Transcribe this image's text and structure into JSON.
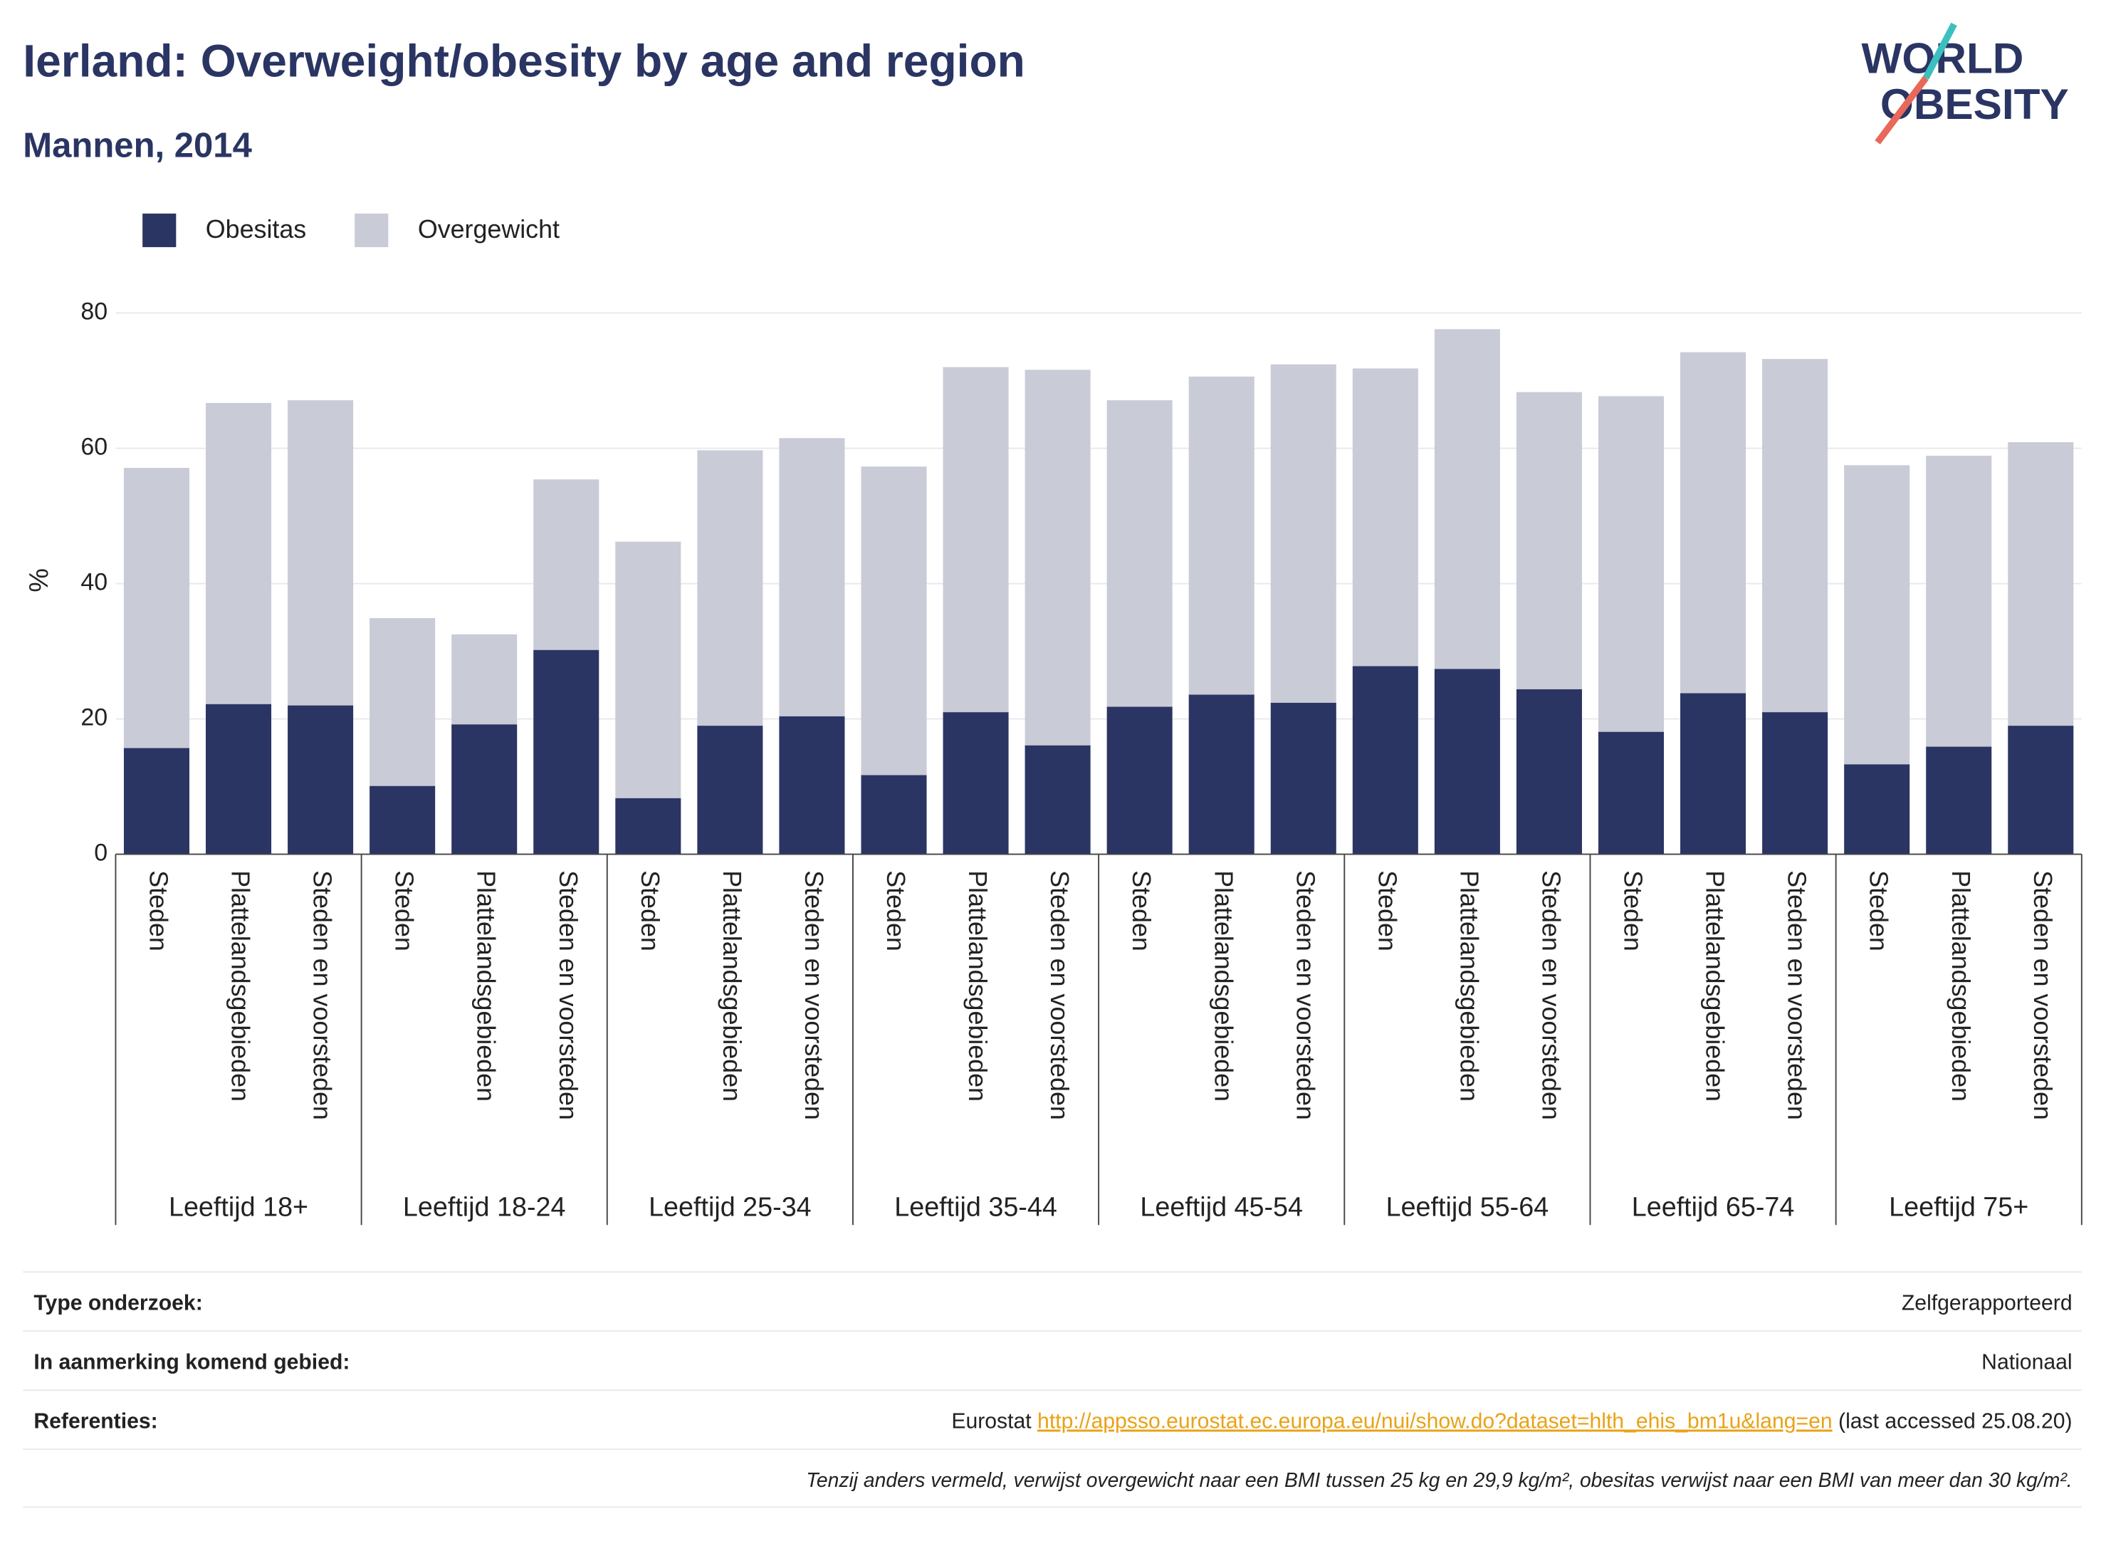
{
  "chart_data": {
    "type": "stacked_bar",
    "title": "Ierland: Overweight/obesity by age and region",
    "subtitle": "Mannen, 2014",
    "y_label": "%",
    "ylim": [
      0,
      80
    ],
    "yticks": [
      0,
      20,
      40,
      60,
      80
    ],
    "grid": true,
    "legend": "top-left",
    "groups": [
      {
        "name": "Leeftijd 18+",
        "categories": [
          "Steden",
          "Plattelandsgebieden",
          "Steden en voorsteden"
        ]
      },
      {
        "name": "Leeftijd 18-24",
        "categories": [
          "Steden",
          "Plattelandsgebieden",
          "Steden en voorsteden"
        ]
      },
      {
        "name": "Leeftijd 25-34",
        "categories": [
          "Steden",
          "Plattelandsgebieden",
          "Steden en voorsteden"
        ]
      },
      {
        "name": "Leeftijd 35-44",
        "categories": [
          "Steden",
          "Plattelandsgebieden",
          "Steden en voorsteden"
        ]
      },
      {
        "name": "Leeftijd 45-54",
        "categories": [
          "Steden",
          "Plattelandsgebieden",
          "Steden en voorsteden"
        ]
      },
      {
        "name": "Leeftijd 55-64",
        "categories": [
          "Steden",
          "Plattelandsgebieden",
          "Steden en voorsteden"
        ]
      },
      {
        "name": "Leeftijd 65-74",
        "categories": [
          "Steden",
          "Plattelandsgebieden",
          "Steden en voorsteden"
        ]
      },
      {
        "name": "Leeftijd 75+",
        "categories": [
          "Steden",
          "Plattelandsgebieden",
          "Steden en voorsteden"
        ]
      }
    ],
    "series": [
      {
        "name": "Obesitas",
        "color": "#2a3563",
        "values": [
          15.7,
          22.2,
          22.0,
          10.1,
          19.2,
          30.2,
          8.3,
          19.0,
          20.4,
          11.7,
          21.0,
          16.1,
          21.8,
          23.6,
          22.4,
          27.8,
          27.4,
          24.4,
          18.1,
          23.8,
          21.0,
          13.3,
          15.9,
          19.0
        ]
      },
      {
        "name": "Overgewicht",
        "color": "#c9cbd6",
        "values": [
          41.4,
          44.5,
          45.1,
          24.8,
          13.3,
          25.2,
          37.9,
          40.7,
          41.1,
          45.6,
          51.0,
          55.5,
          45.3,
          47.0,
          50.0,
          44.0,
          50.2,
          43.9,
          49.6,
          50.4,
          52.2,
          44.2,
          43.0,
          41.9
        ]
      }
    ]
  },
  "logo": {
    "line1": "WORLD",
    "line2": "OBESITY"
  },
  "footer": {
    "rows": [
      {
        "label": "Type onderzoek:",
        "value": "Zelfgerapporteerd"
      },
      {
        "label": "In aanmerking komend gebied:",
        "value": "Nationaal"
      }
    ],
    "references": {
      "label": "Referenties:",
      "source": "Eurostat",
      "link": "http://appsso.eurostat.ec.europa.eu/nui/show.do?dataset=hlth_ehis_bm1u&lang=en",
      "accessed": "(last accessed 25.08.20)"
    },
    "note": "Tenzij anders vermeld, verwijst overgewicht naar een BMI tussen 25 kg en 29,9 kg/m², obesitas verwijst naar een BMI van meer dan 30 kg/m²."
  }
}
